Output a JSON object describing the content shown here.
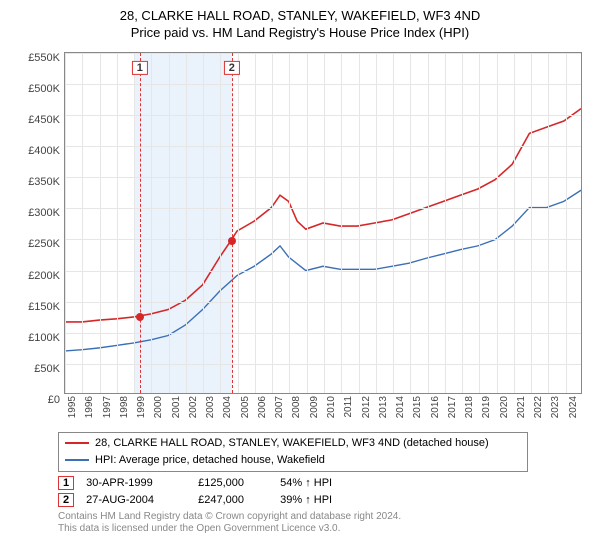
{
  "title_line1": "28, CLARKE HALL ROAD, STANLEY, WAKEFIELD, WF3 4ND",
  "title_line2": "Price paid vs. HM Land Registry's House Price Index (HPI)",
  "chart": {
    "type": "line",
    "background_color": "#ffffff",
    "grid_color": "#e6e6e6",
    "axis_color": "#888888",
    "highlight_band_color": "#eaf2fb",
    "highlight_band_years": [
      1999,
      2004.66
    ],
    "ylim": [
      0,
      550000
    ],
    "ytick_step": 50000,
    "y_tick_labels": [
      "£0",
      "£50K",
      "£100K",
      "£150K",
      "£200K",
      "£250K",
      "£300K",
      "£350K",
      "£400K",
      "£450K",
      "£500K",
      "£550K"
    ],
    "xlim": [
      1995,
      2025
    ],
    "x_ticks": [
      1995,
      1996,
      1997,
      1998,
      1999,
      2000,
      2001,
      2002,
      2003,
      2004,
      2005,
      2006,
      2007,
      2008,
      2009,
      2010,
      2011,
      2012,
      2013,
      2014,
      2015,
      2016,
      2017,
      2018,
      2019,
      2020,
      2021,
      2022,
      2023,
      2024
    ],
    "label_fontsize": 11,
    "series": [
      {
        "name": "property",
        "label": "28, CLARKE HALL ROAD, STANLEY, WAKEFIELD, WF3 4ND (detached house)",
        "color": "#d62728",
        "line_width": 1.6,
        "x": [
          1995,
          1996,
          1997,
          1998,
          1999,
          2000,
          2001,
          2002,
          2003,
          2004,
          2004.66,
          2005,
          2006,
          2007,
          2007.5,
          2008,
          2008.5,
          2009,
          2010,
          2011,
          2012,
          2013,
          2014,
          2015,
          2016,
          2017,
          2018,
          2019,
          2020,
          2021,
          2022,
          2023,
          2024,
          2025
        ],
        "y": [
          115000,
          115000,
          118000,
          120000,
          123000,
          128000,
          135000,
          150000,
          175000,
          220000,
          247000,
          262000,
          278000,
          300000,
          320000,
          310000,
          278000,
          265000,
          275000,
          270000,
          270000,
          275000,
          280000,
          290000,
          300000,
          310000,
          320000,
          330000,
          345000,
          370000,
          420000,
          430000,
          440000,
          460000
        ]
      },
      {
        "name": "hpi",
        "label": "HPI: Average price, detached house, Wakefield",
        "color": "#3b6fb6",
        "line_width": 1.4,
        "x": [
          1995,
          1996,
          1997,
          1998,
          1999,
          2000,
          2001,
          2002,
          2003,
          2004,
          2005,
          2006,
          2007,
          2007.5,
          2008,
          2009,
          2010,
          2011,
          2012,
          2013,
          2014,
          2015,
          2016,
          2017,
          2018,
          2019,
          2020,
          2021,
          2022,
          2023,
          2024,
          2025
        ],
        "y": [
          68000,
          70000,
          73000,
          77000,
          81000,
          86000,
          93000,
          110000,
          135000,
          165000,
          190000,
          205000,
          225000,
          238000,
          220000,
          198000,
          205000,
          200000,
          200000,
          200000,
          205000,
          210000,
          218000,
          225000,
          232000,
          238000,
          248000,
          270000,
          300000,
          300000,
          310000,
          328000
        ]
      }
    ],
    "sale_markers": [
      {
        "idx": "1",
        "year": 1999.33,
        "price": 125000,
        "color": "#d62728"
      },
      {
        "idx": "2",
        "year": 2004.66,
        "price": 247000,
        "color": "#d62728"
      }
    ]
  },
  "legend": {
    "border_color": "#888888",
    "rows": [
      {
        "color": "#d62728",
        "label": "28, CLARKE HALL ROAD, STANLEY, WAKEFIELD, WF3 4ND (detached house)"
      },
      {
        "color": "#3b6fb6",
        "label": "HPI: Average price, detached house, Wakefield"
      }
    ]
  },
  "sales": [
    {
      "idx": "1",
      "date": "30-APR-1999",
      "price": "£125,000",
      "delta": "54% ↑ HPI"
    },
    {
      "idx": "2",
      "date": "27-AUG-2004",
      "price": "£247,000",
      "delta": "39% ↑ HPI"
    }
  ],
  "attribution": {
    "line1": "Contains HM Land Registry data © Crown copyright and database right 2024.",
    "line2": "This data is licensed under the Open Government Licence v3.0."
  },
  "marker_box_border": "#d33"
}
